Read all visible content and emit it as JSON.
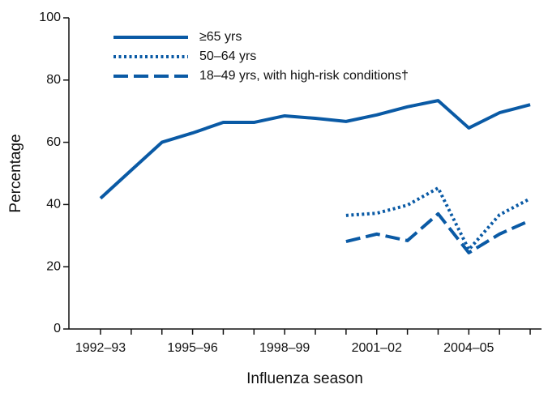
{
  "chart_data": {
    "type": "line",
    "x_label": "Influenza season",
    "y_label": "Percentage",
    "categories": [
      "1992–93",
      null,
      null,
      "1995–96",
      null,
      null,
      "1998–99",
      null,
      null,
      "2001–02",
      null,
      null,
      "2004–05",
      null,
      null
    ],
    "series": [
      {
        "name": "≥65 yrs",
        "color": "#0a5aa5",
        "style": "solid",
        "values": [
          42,
          51,
          60,
          63,
          66.4,
          66.4,
          68.5,
          67.7,
          66.7,
          68.8,
          71.4,
          73.4,
          64.6,
          69.5,
          72.1
        ]
      },
      {
        "name": "50–64 yrs",
        "color": "#0a5aa5",
        "style": "dotted",
        "values": [
          null,
          null,
          null,
          null,
          null,
          null,
          null,
          null,
          36.5,
          37.2,
          39.8,
          45.3,
          25.5,
          36.7,
          41.9
        ]
      },
      {
        "name": "18–49 yrs, with high-risk conditions†",
        "color": "#0a5aa5",
        "style": "dashed",
        "values": [
          null,
          null,
          null,
          null,
          null,
          null,
          null,
          null,
          28.1,
          30.5,
          28.4,
          37,
          24.5,
          30.5,
          34.9
        ]
      }
    ],
    "ylim": [
      0,
      100
    ],
    "yticks": [
      0,
      20,
      40,
      60,
      80,
      100
    ],
    "legend": "upper left"
  }
}
